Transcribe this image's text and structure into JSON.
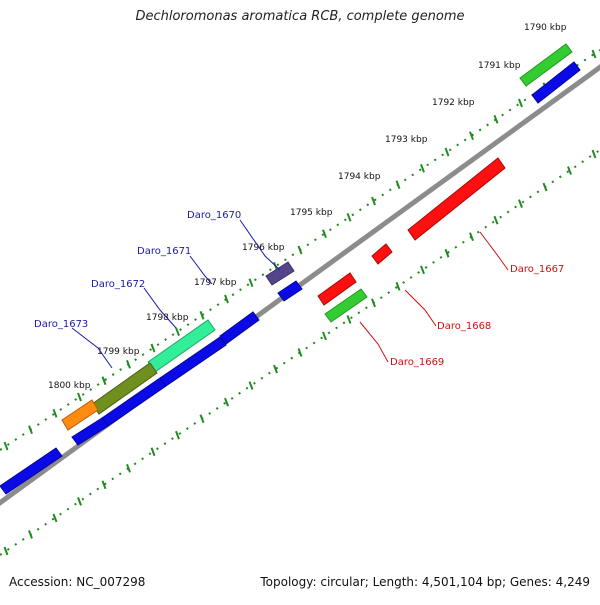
{
  "title": "Dechloromonas aromatica RCB, complete genome",
  "accession": "Accession: NC_007298",
  "summary": "Topology: circular; Length: 4,501,104 bp; Genes: 4,249",
  "scale_labels": [
    "1790 kbp",
    "1791 kbp",
    "1792 kbp",
    "1793 kbp",
    "1794 kbp",
    "1795 kbp",
    "1796 kbp",
    "1797 kbp",
    "1798 kbp",
    "1799 kbp",
    "1800 kbp"
  ],
  "gene_labels": [
    {
      "name": "Daro_1670",
      "color": "#1a1aa6"
    },
    {
      "name": "Daro_1671",
      "color": "#1a1aa6"
    },
    {
      "name": "Daro_1672",
      "color": "#1a1aa6"
    },
    {
      "name": "Daro_1673",
      "color": "#1a1aa6"
    },
    {
      "name": "Daro_1667",
      "color": "#cc1111"
    },
    {
      "name": "Daro_1668",
      "color": "#cc1111"
    },
    {
      "name": "Daro_1669",
      "color": "#cc1111"
    }
  ],
  "colors": {
    "backbone": "#8c8c8c",
    "ticks": "#1f8a1f",
    "cds_blue": "#0a0ae6",
    "cds_red": "#ff1010",
    "cds_green": "#33cc33",
    "cds_orange": "#ff8c10",
    "cds_olive": "#6f8f1f",
    "cds_aqua": "#33ee99",
    "cds_purple": "#55448c"
  }
}
